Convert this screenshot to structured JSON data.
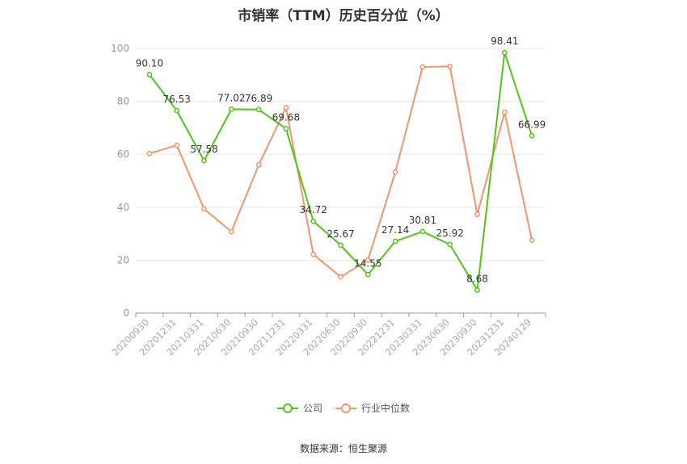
{
  "chart_data": {
    "type": "line",
    "title": "市销率（TTM）历史百分位（%）",
    "categories": [
      "20200930",
      "20201231",
      "20210331",
      "20210630",
      "20210930",
      "20211231",
      "20220331",
      "20220630",
      "20220930",
      "20221231",
      "20230331",
      "20230630",
      "20230930",
      "20231231",
      "20240129"
    ],
    "series": [
      {
        "name": "公司",
        "color": "#52c41a",
        "values": [
          90.1,
          76.53,
          57.58,
          77.02,
          76.89,
          69.68,
          34.72,
          25.67,
          14.55,
          27.14,
          30.81,
          25.92,
          8.68,
          98.41,
          66.99
        ],
        "labels": [
          "90.10",
          "76.53",
          "57.58",
          "77.02",
          "76.89",
          "69.68",
          "34.72",
          "25.67",
          "14.55",
          "27.14",
          "30.81",
          "25.92",
          "8.68",
          "98.41",
          "66.99"
        ]
      },
      {
        "name": "行业中位数",
        "color": "#f4946b",
        "values": [
          60.3,
          63.4,
          39.4,
          30.8,
          56.0,
          77.6,
          22.2,
          13.7,
          20.0,
          53.3,
          93.0,
          93.2,
          37.3,
          75.9,
          27.5
        ]
      }
    ],
    "ylim": [
      0,
      100
    ],
    "yticks": [
      0,
      20,
      40,
      60,
      80,
      100
    ],
    "grid": true,
    "legend_position": "bottom"
  },
  "source": "数据来源：恒生聚源"
}
